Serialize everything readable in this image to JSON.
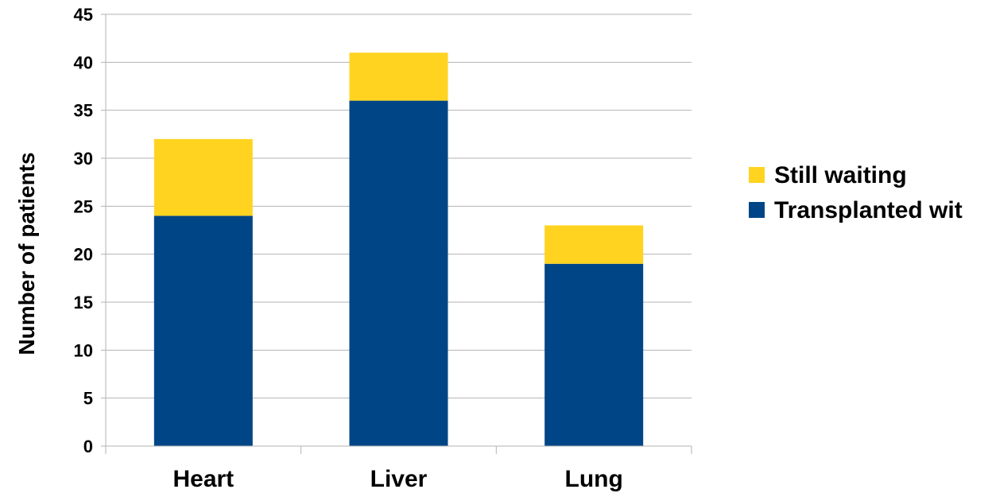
{
  "chart_data": {
    "type": "bar",
    "stacked": true,
    "categories": [
      "Heart",
      "Liver",
      "Lung"
    ],
    "series": [
      {
        "name": "Transplanted wit",
        "color": "#004586",
        "values": [
          24,
          36,
          19
        ]
      },
      {
        "name": "Still waiting",
        "color": "#ffd320",
        "values": [
          8,
          5,
          4
        ]
      }
    ],
    "ylabel": "Number of patients",
    "xlabel": "",
    "ylim": [
      0,
      45
    ],
    "yticks": [
      0,
      5,
      10,
      15,
      20,
      25,
      30,
      35,
      40,
      45
    ],
    "grid": true,
    "legend_position": "right",
    "legend_order": [
      "Still waiting",
      "Transplanted wit"
    ]
  }
}
